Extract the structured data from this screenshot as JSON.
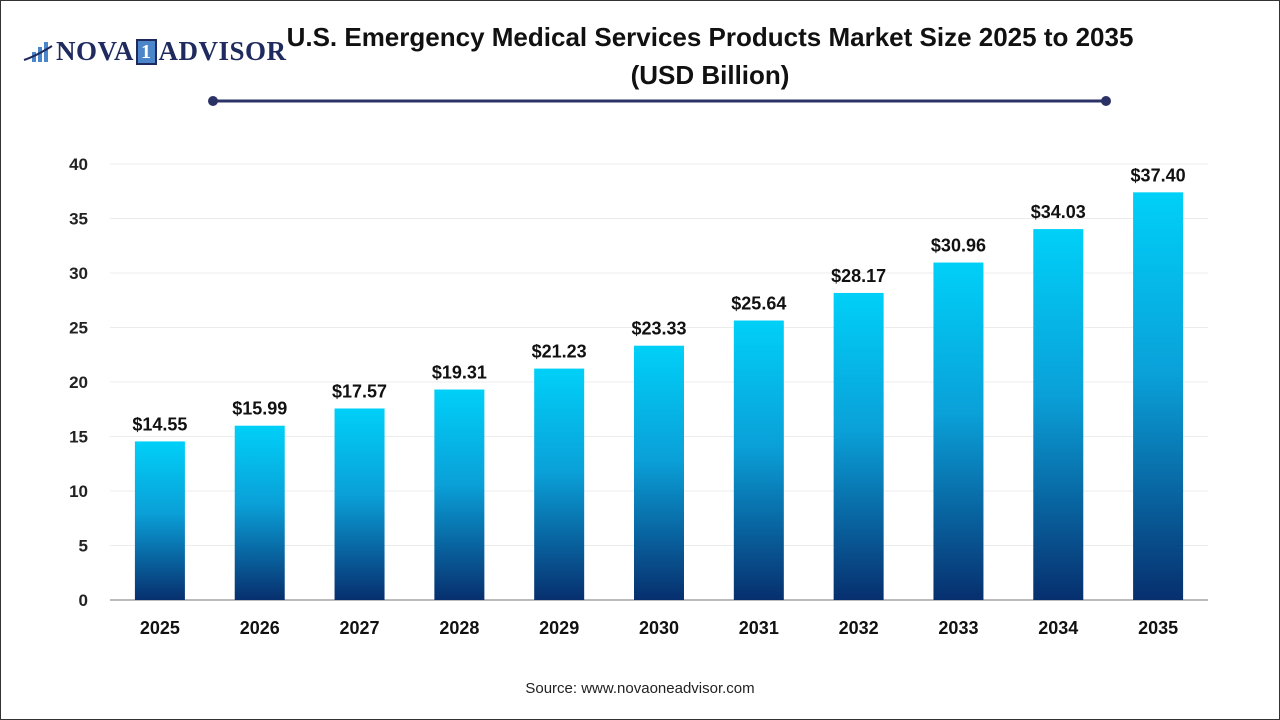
{
  "logo": {
    "text_left": "NOVA",
    "text_one": "1",
    "text_right": "ADVISOR"
  },
  "title": "U.S. Emergency Medical Services Products Market Size 2025 to 2035 (USD Billion)",
  "source": "Source: www.novaoneadvisor.com",
  "colors": {
    "bar_top": "#00D0F8",
    "bar_bottom": "#072F6E",
    "title_line": "#2b3266"
  },
  "chart_data": {
    "type": "bar",
    "title": "U.S. Emergency Medical Services Products Market Size 2025 to 2035 (USD Billion)",
    "xlabel": "",
    "ylabel": "",
    "categories": [
      "2025",
      "2026",
      "2027",
      "2028",
      "2029",
      "2030",
      "2031",
      "2032",
      "2033",
      "2034",
      "2035"
    ],
    "values": [
      14.55,
      15.99,
      17.57,
      19.31,
      21.23,
      23.33,
      25.64,
      28.17,
      30.96,
      34.03,
      37.4
    ],
    "data_labels": [
      "$14.55",
      "$15.99",
      "$17.57",
      "$19.31",
      "$21.23",
      "$23.33",
      "$25.64",
      "$28.17",
      "$30.96",
      "$34.03",
      "$37.40"
    ],
    "ylim": [
      0,
      40
    ],
    "yticks": [
      0,
      5,
      10,
      15,
      20,
      25,
      30,
      35,
      40
    ],
    "grid": true,
    "legend": "none"
  }
}
